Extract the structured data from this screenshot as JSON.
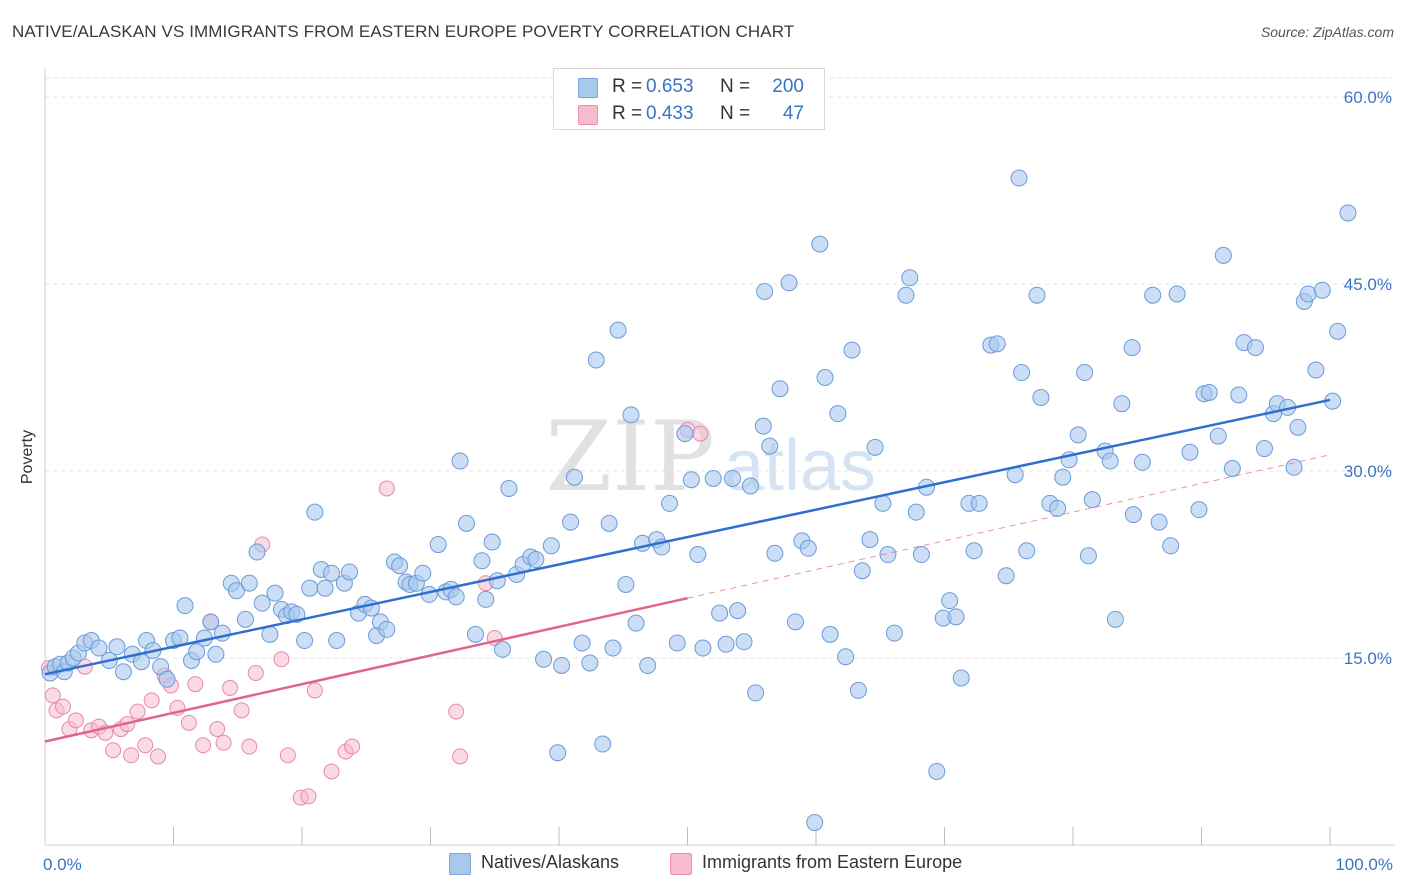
{
  "header": {
    "title": "NATIVE/ALASKAN VS IMMIGRANTS FROM EASTERN EUROPE POVERTY CORRELATION CHART",
    "source": "Source: ZipAtlas.com"
  },
  "watermark": {
    "zip": "ZIP",
    "atlas": "atlas"
  },
  "legend": {
    "rows": [
      {
        "r_label": "R =",
        "r_value": "0.653",
        "n_label": "N =",
        "n_value": "200",
        "color": "#a9c8ee",
        "border": "#7aa6dc"
      },
      {
        "r_label": "R =",
        "r_value": "0.433",
        "n_label": "N =",
        "n_value": "47",
        "color": "#f6bccd",
        "border": "#e891ac"
      }
    ]
  },
  "bottom_legend": {
    "items": [
      {
        "label": "Natives/Alaskans",
        "color": "#a9c8ee",
        "border": "#7aa6dc"
      },
      {
        "label": "Immigrants from Eastern Europe",
        "color": "#f6bccd",
        "border": "#e891ac"
      }
    ]
  },
  "chart_data": {
    "type": "scatter",
    "ylabel": "Poverty",
    "xlim": [
      0,
      100
    ],
    "ylim": [
      0,
      60
    ],
    "x_tick_labels": [
      "0.0%",
      "100.0%"
    ],
    "y_ticks": [
      15,
      30,
      45,
      60
    ],
    "y_tick_labels": [
      "15.0%",
      "30.0%",
      "45.0%",
      "60.0%"
    ],
    "grid": true,
    "legend_position": "top-center",
    "colors": {
      "blue_fill": "#a9c8ee",
      "blue_stroke": "#6b9bd6",
      "blue_line": "#2f6fcf",
      "pink_fill": "#f6bccd",
      "pink_stroke": "#e78aa8",
      "pink_line": "#e0648c",
      "tick_label": "#3a74c4",
      "grid": "#e4e4e4"
    },
    "series": [
      {
        "name": "Natives/Alaskans",
        "trend": {
          "x": [
            0,
            100
          ],
          "y": [
            13.7,
            35.7
          ]
        },
        "points": [
          [
            0.4,
            13.8
          ],
          [
            0.8,
            14.3
          ],
          [
            1.2,
            14.5
          ],
          [
            1.5,
            13.9
          ],
          [
            1.8,
            14.6
          ],
          [
            2.2,
            15.0
          ],
          [
            2.6,
            15.4
          ],
          [
            3.1,
            16.2
          ],
          [
            3.6,
            16.4
          ],
          [
            4.2,
            15.8
          ],
          [
            5.0,
            14.8
          ],
          [
            5.6,
            15.9
          ],
          [
            6.1,
            13.9
          ],
          [
            6.8,
            15.3
          ],
          [
            7.5,
            14.7
          ],
          [
            7.9,
            16.4
          ],
          [
            8.4,
            15.6
          ],
          [
            9.0,
            14.3
          ],
          [
            9.5,
            13.3
          ],
          [
            10.0,
            16.4
          ],
          [
            10.5,
            16.6
          ],
          [
            10.9,
            19.2
          ],
          [
            11.4,
            14.8
          ],
          [
            11.8,
            15.5
          ],
          [
            12.4,
            16.6
          ],
          [
            12.9,
            17.9
          ],
          [
            13.3,
            15.3
          ],
          [
            13.8,
            17.0
          ],
          [
            14.5,
            21.0
          ],
          [
            14.9,
            20.4
          ],
          [
            15.6,
            18.1
          ],
          [
            15.9,
            21.0
          ],
          [
            16.5,
            23.5
          ],
          [
            16.9,
            19.4
          ],
          [
            17.5,
            16.9
          ],
          [
            17.9,
            20.2
          ],
          [
            18.4,
            18.9
          ],
          [
            18.8,
            18.4
          ],
          [
            19.2,
            18.7
          ],
          [
            19.6,
            18.5
          ],
          [
            20.2,
            16.4
          ],
          [
            20.6,
            20.6
          ],
          [
            21.0,
            26.7
          ],
          [
            21.5,
            22.1
          ],
          [
            21.8,
            20.6
          ],
          [
            22.3,
            21.8
          ],
          [
            22.7,
            16.4
          ],
          [
            23.3,
            21.0
          ],
          [
            23.7,
            21.9
          ],
          [
            24.4,
            18.6
          ],
          [
            24.9,
            19.3
          ],
          [
            25.4,
            19.0
          ],
          [
            25.8,
            16.8
          ],
          [
            26.1,
            17.9
          ],
          [
            26.6,
            17.3
          ],
          [
            27.2,
            22.7
          ],
          [
            27.6,
            22.4
          ],
          [
            28.1,
            21.1
          ],
          [
            28.4,
            20.9
          ],
          [
            28.9,
            21.0
          ],
          [
            29.4,
            21.8
          ],
          [
            29.9,
            20.1
          ],
          [
            30.6,
            24.1
          ],
          [
            31.2,
            20.3
          ],
          [
            31.6,
            20.5
          ],
          [
            32.0,
            19.9
          ],
          [
            32.3,
            30.8
          ],
          [
            32.8,
            25.8
          ],
          [
            33.5,
            16.9
          ],
          [
            34.0,
            22.8
          ],
          [
            34.3,
            19.7
          ],
          [
            34.8,
            24.3
          ],
          [
            35.2,
            21.2
          ],
          [
            35.6,
            15.7
          ],
          [
            36.1,
            28.6
          ],
          [
            36.7,
            21.7
          ],
          [
            37.2,
            22.5
          ],
          [
            37.8,
            23.1
          ],
          [
            38.2,
            22.9
          ],
          [
            38.8,
            14.9
          ],
          [
            39.4,
            24.0
          ],
          [
            39.9,
            7.4
          ],
          [
            40.2,
            14.4
          ],
          [
            40.9,
            25.9
          ],
          [
            41.2,
            29.5
          ],
          [
            41.8,
            16.2
          ],
          [
            42.4,
            14.6
          ],
          [
            42.9,
            38.9
          ],
          [
            43.4,
            8.1
          ],
          [
            43.9,
            25.8
          ],
          [
            44.2,
            15.8
          ],
          [
            44.6,
            41.3
          ],
          [
            45.2,
            20.9
          ],
          [
            45.6,
            34.5
          ],
          [
            46.0,
            17.8
          ],
          [
            46.5,
            24.2
          ],
          [
            46.9,
            14.4
          ],
          [
            47.6,
            24.5
          ],
          [
            48.0,
            23.9
          ],
          [
            48.6,
            27.4
          ],
          [
            49.2,
            16.2
          ],
          [
            49.8,
            33.0
          ],
          [
            50.3,
            29.3
          ],
          [
            50.8,
            23.3
          ],
          [
            51.2,
            15.8
          ],
          [
            52.0,
            29.4
          ],
          [
            52.5,
            18.6
          ],
          [
            53.0,
            16.1
          ],
          [
            53.5,
            29.4
          ],
          [
            53.9,
            18.8
          ],
          [
            54.4,
            16.3
          ],
          [
            54.9,
            28.8
          ],
          [
            55.3,
            12.2
          ],
          [
            56.0,
            44.4
          ],
          [
            56.4,
            32.0
          ],
          [
            56.8,
            23.4
          ],
          [
            57.2,
            36.6
          ],
          [
            57.9,
            45.1
          ],
          [
            58.4,
            17.9
          ],
          [
            58.9,
            24.4
          ],
          [
            59.4,
            23.8
          ],
          [
            59.9,
            1.8
          ],
          [
            60.3,
            48.2
          ],
          [
            60.7,
            37.5
          ],
          [
            61.1,
            16.9
          ],
          [
            61.7,
            34.6
          ],
          [
            62.3,
            15.1
          ],
          [
            62.8,
            39.7
          ],
          [
            63.3,
            12.4
          ],
          [
            63.6,
            22.0
          ],
          [
            64.2,
            24.5
          ],
          [
            64.6,
            31.9
          ],
          [
            65.2,
            27.4
          ],
          [
            65.6,
            23.3
          ],
          [
            66.1,
            17.0
          ],
          [
            67.0,
            44.1
          ],
          [
            67.3,
            45.5
          ],
          [
            67.8,
            26.7
          ],
          [
            68.2,
            23.3
          ],
          [
            68.6,
            28.7
          ],
          [
            69.4,
            5.9
          ],
          [
            69.9,
            18.2
          ],
          [
            70.4,
            19.6
          ],
          [
            70.9,
            18.3
          ],
          [
            71.3,
            13.4
          ],
          [
            71.9,
            27.4
          ],
          [
            72.3,
            23.6
          ],
          [
            72.7,
            27.4
          ],
          [
            73.6,
            40.1
          ],
          [
            74.1,
            40.2
          ],
          [
            74.8,
            21.6
          ],
          [
            75.5,
            29.7
          ],
          [
            76.0,
            37.9
          ],
          [
            76.4,
            23.6
          ],
          [
            77.2,
            44.1
          ],
          [
            77.5,
            35.9
          ],
          [
            78.2,
            27.4
          ],
          [
            78.8,
            27.0
          ],
          [
            79.2,
            29.5
          ],
          [
            79.7,
            30.9
          ],
          [
            80.4,
            32.9
          ],
          [
            80.9,
            37.9
          ],
          [
            81.2,
            23.2
          ],
          [
            81.5,
            27.7
          ],
          [
            82.5,
            31.6
          ],
          [
            82.9,
            30.8
          ],
          [
            83.3,
            18.1
          ],
          [
            83.8,
            35.4
          ],
          [
            84.7,
            26.5
          ],
          [
            85.4,
            30.7
          ],
          [
            86.2,
            44.1
          ],
          [
            86.7,
            25.9
          ],
          [
            87.6,
            24.0
          ],
          [
            88.1,
            44.2
          ],
          [
            89.1,
            31.5
          ],
          [
            89.8,
            26.9
          ],
          [
            90.2,
            36.2
          ],
          [
            90.6,
            36.3
          ],
          [
            91.3,
            32.8
          ],
          [
            91.7,
            47.3
          ],
          [
            92.4,
            30.2
          ],
          [
            92.9,
            36.1
          ],
          [
            93.3,
            40.3
          ],
          [
            94.2,
            39.9
          ],
          [
            94.9,
            31.8
          ],
          [
            95.6,
            34.6
          ],
          [
            95.9,
            35.4
          ],
          [
            96.7,
            35.1
          ],
          [
            97.2,
            30.3
          ],
          [
            97.5,
            33.5
          ],
          [
            98.0,
            43.6
          ],
          [
            98.3,
            44.2
          ],
          [
            98.9,
            38.1
          ],
          [
            99.4,
            44.5
          ],
          [
            100.2,
            35.6
          ],
          [
            100.6,
            41.2
          ],
          [
            101.4,
            50.7
          ],
          [
            75.8,
            53.5
          ],
          [
            55.9,
            33.6
          ],
          [
            84.6,
            39.9
          ]
        ]
      },
      {
        "name": "Immigrants from Eastern Europe",
        "trend": {
          "x": [
            0,
            50
          ],
          "y": [
            8.3,
            19.8
          ]
        },
        "dashed_extension": {
          "x": [
            50,
            100
          ],
          "y": [
            19.8,
            31.3
          ]
        },
        "points": [
          [
            0.3,
            14.2
          ],
          [
            0.6,
            12.0
          ],
          [
            0.9,
            10.8
          ],
          [
            1.4,
            11.1
          ],
          [
            1.9,
            9.3
          ],
          [
            2.4,
            10.0
          ],
          [
            3.1,
            14.3
          ],
          [
            3.6,
            9.2
          ],
          [
            4.2,
            9.5
          ],
          [
            4.7,
            9.0
          ],
          [
            5.3,
            7.6
          ],
          [
            5.9,
            9.3
          ],
          [
            6.4,
            9.7
          ],
          [
            6.7,
            7.2
          ],
          [
            7.2,
            10.7
          ],
          [
            7.8,
            8.0
          ],
          [
            8.3,
            11.6
          ],
          [
            8.8,
            7.1
          ],
          [
            9.3,
            13.6
          ],
          [
            9.8,
            12.8
          ],
          [
            10.3,
            11.0
          ],
          [
            11.2,
            9.8
          ],
          [
            11.7,
            12.9
          ],
          [
            12.3,
            8.0
          ],
          [
            12.9,
            17.9
          ],
          [
            13.4,
            9.3
          ],
          [
            13.9,
            8.2
          ],
          [
            14.4,
            12.6
          ],
          [
            15.3,
            10.8
          ],
          [
            15.9,
            7.9
          ],
          [
            16.4,
            13.8
          ],
          [
            16.9,
            24.1
          ],
          [
            18.4,
            14.9
          ],
          [
            18.9,
            7.2
          ],
          [
            19.9,
            3.8
          ],
          [
            20.5,
            3.9
          ],
          [
            21.0,
            12.4
          ],
          [
            22.3,
            5.9
          ],
          [
            23.4,
            7.5
          ],
          [
            23.9,
            7.9
          ],
          [
            26.6,
            28.6
          ],
          [
            32.0,
            10.7
          ],
          [
            32.3,
            7.1
          ],
          [
            34.3,
            21.0
          ],
          [
            35.0,
            16.6
          ],
          [
            50.0,
            33.3
          ],
          [
            51.0,
            33.0
          ]
        ]
      }
    ]
  }
}
